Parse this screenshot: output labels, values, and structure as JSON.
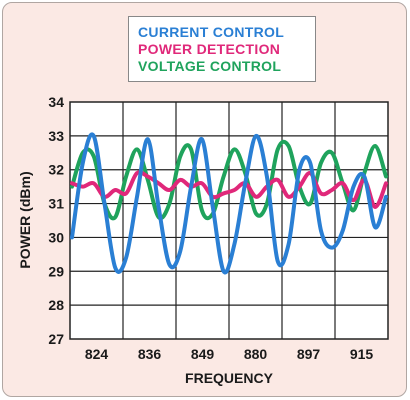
{
  "chart_data": {
    "type": "line",
    "xlabel": "FREQUENCY",
    "ylabel": "POWER (dBm)",
    "ylim": [
      27,
      34
    ],
    "yticks": [
      27,
      28,
      29,
      30,
      31,
      32,
      33,
      34
    ],
    "xtick_labels": [
      "824",
      "836",
      "849",
      "880",
      "897",
      "915"
    ],
    "grid": true,
    "legend_position": "top-center",
    "series": [
      {
        "name": "CURRENT CONTROL",
        "color": "#2a7fd4",
        "values": [
          30.0,
          32.2,
          33.0,
          31.0,
          29.1,
          29.4,
          31.2,
          32.9,
          30.9,
          29.2,
          29.6,
          31.5,
          32.9,
          30.9,
          29.0,
          29.8,
          31.6,
          33.0,
          31.8,
          29.3,
          29.8,
          32.0,
          32.2,
          30.2,
          29.7,
          30.2,
          31.5,
          31.8,
          30.3,
          31.2
        ]
      },
      {
        "name": "POWER DETECTION",
        "color": "#e0287a",
        "values": [
          31.6,
          31.5,
          31.6,
          31.2,
          31.4,
          31.3,
          31.9,
          31.8,
          31.6,
          31.4,
          31.7,
          31.5,
          31.6,
          31.2,
          31.3,
          31.4,
          31.6,
          31.2,
          31.5,
          31.7,
          31.2,
          31.5,
          31.9,
          31.3,
          31.4,
          31.6,
          31.1,
          31.7,
          30.9,
          31.6
        ]
      },
      {
        "name": "VOLTAGE CONTROL",
        "color": "#1fa35c",
        "values": [
          31.5,
          32.5,
          32.4,
          31.0,
          30.6,
          31.8,
          32.6,
          31.7,
          30.6,
          31.0,
          32.4,
          32.6,
          30.8,
          30.7,
          31.8,
          32.6,
          31.9,
          30.7,
          31.0,
          32.6,
          32.7,
          31.5,
          31.0,
          32.2,
          32.5,
          31.6,
          30.8,
          31.9,
          32.7,
          31.8
        ]
      }
    ]
  }
}
